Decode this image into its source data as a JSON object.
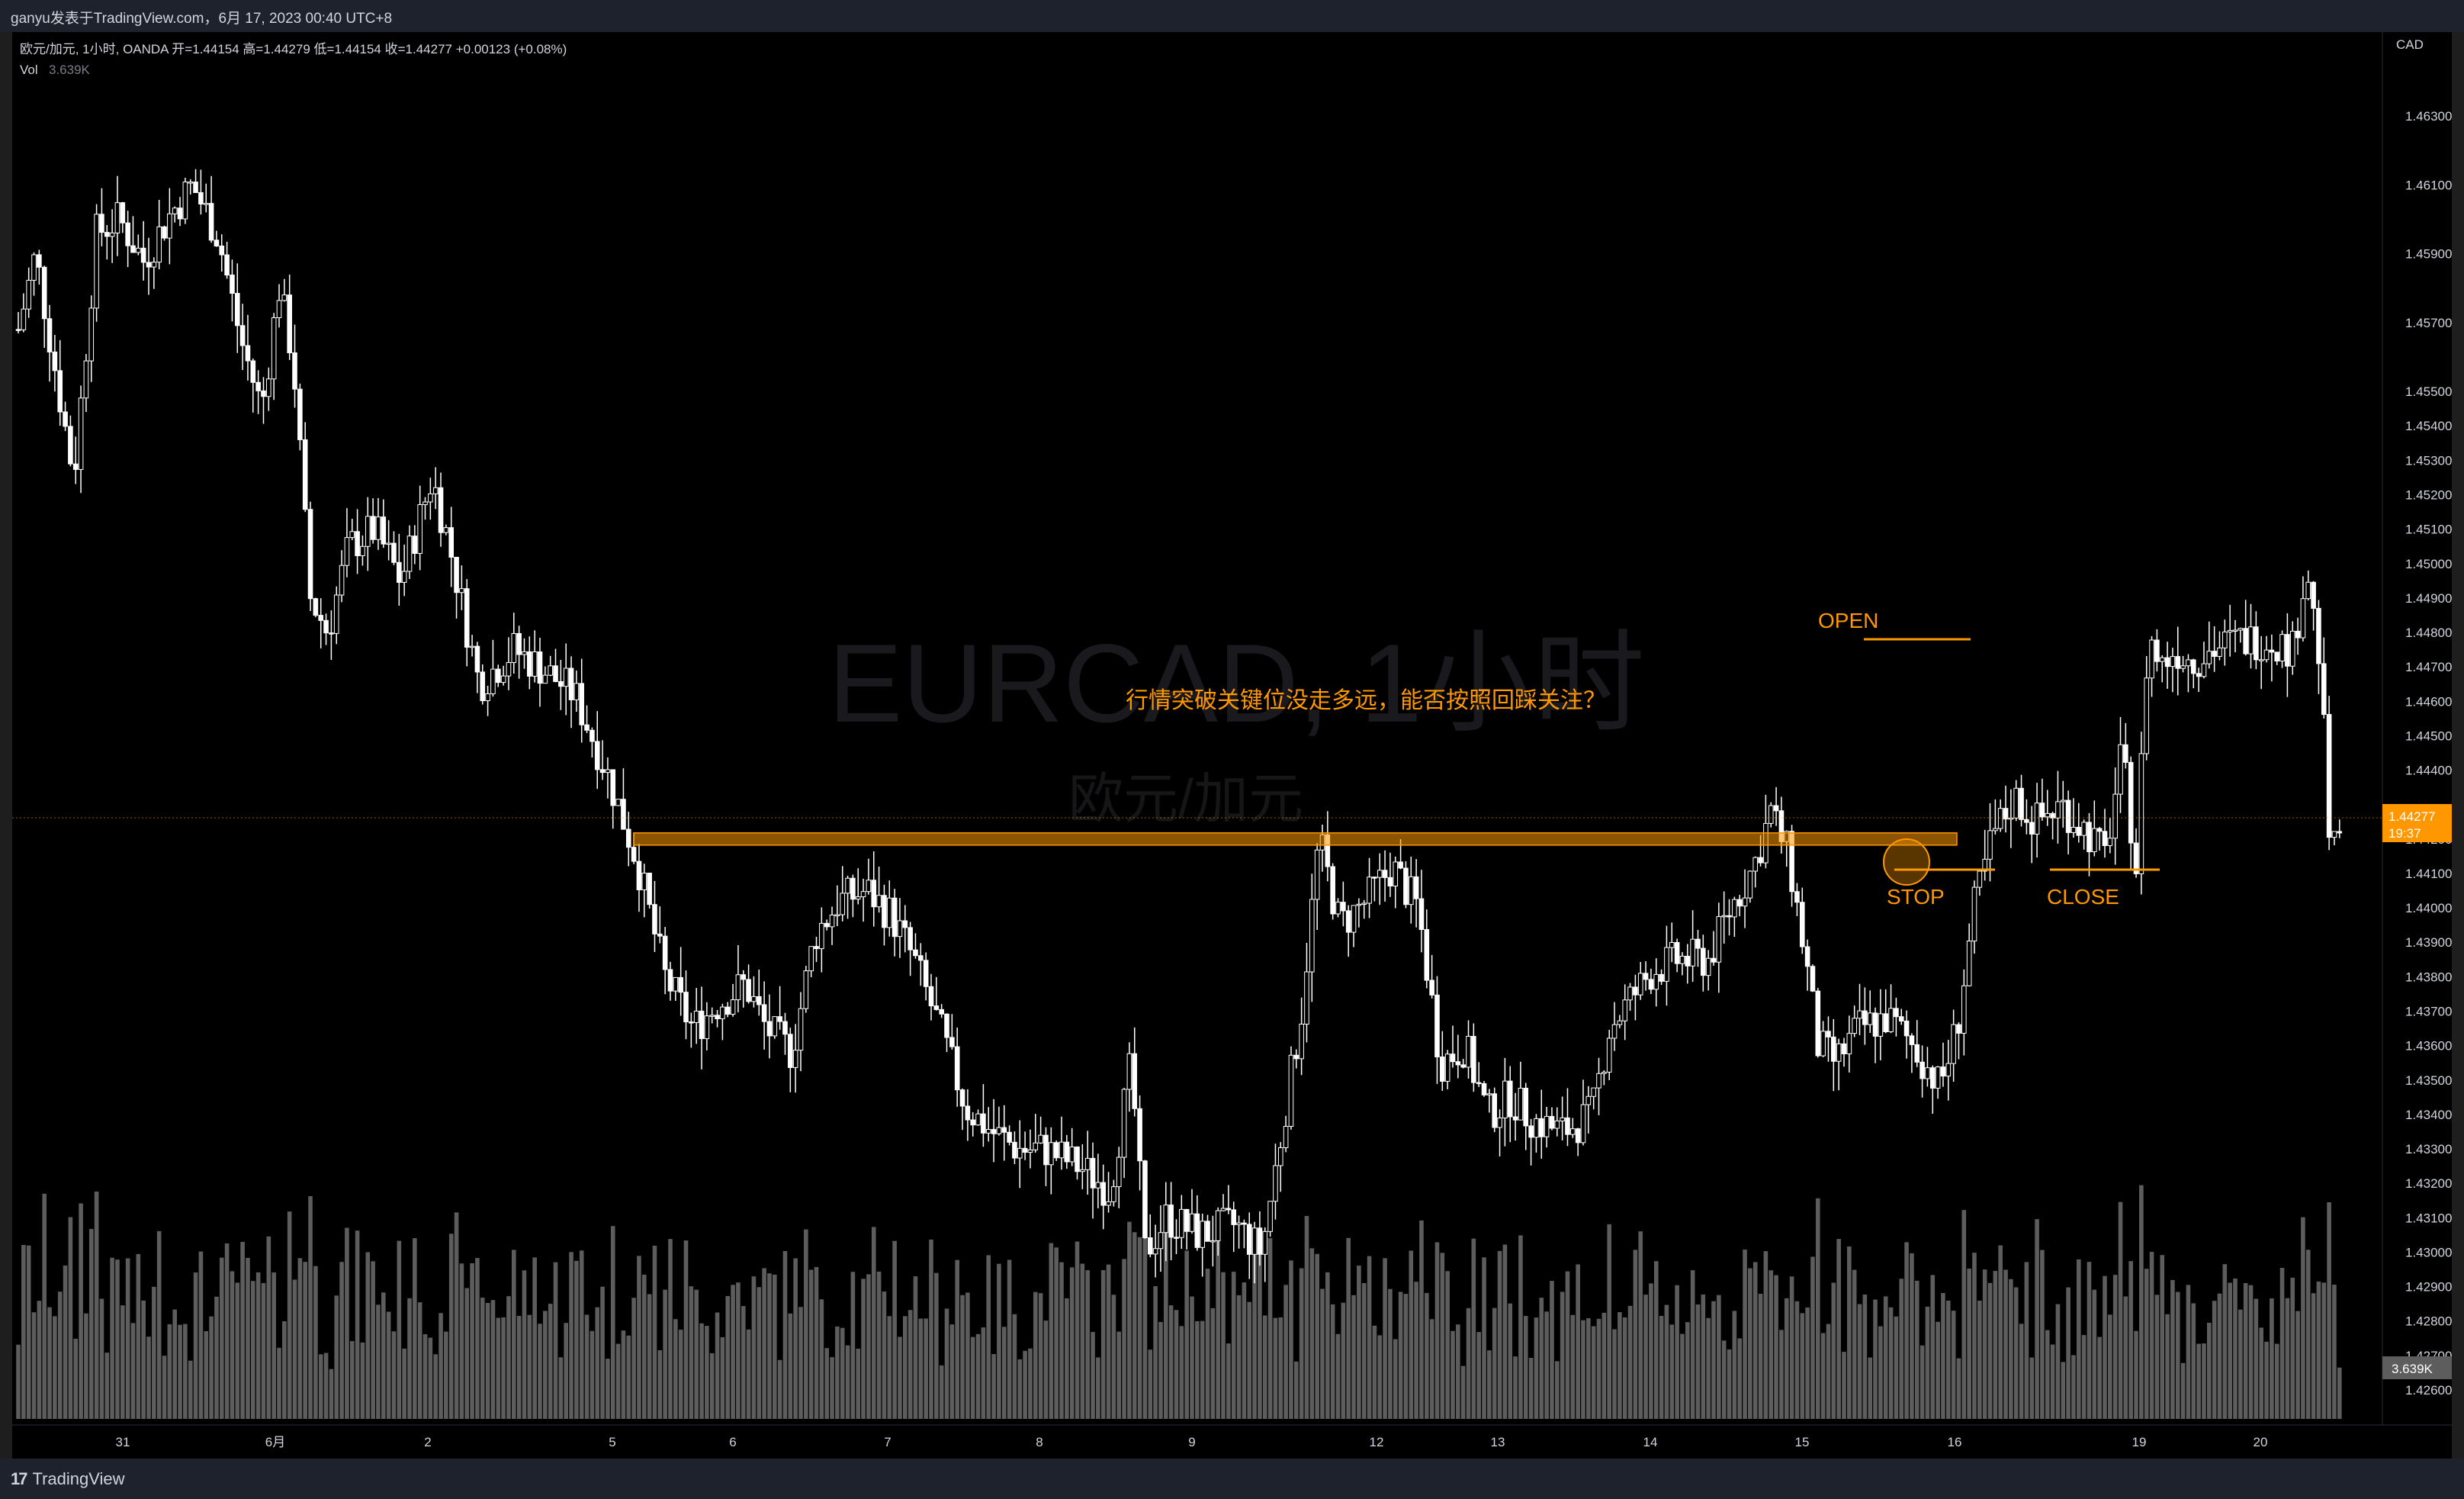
{
  "header": {
    "publish_line": "ganyu发表于TradingView.com，6月 17, 2023 00:40 UTC+8"
  },
  "legend": {
    "symbol_line": "欧元/加元, 1小时, OANDA  开=1.44154  高=1.44279  低=1.44154  收=1.44277  +0.00123 (+0.08%)",
    "vol_label": "Vol",
    "vol_value": "3.639K"
  },
  "watermark": {
    "main": "EURCAD, 1小时",
    "sub": "欧元/加元"
  },
  "annotation": {
    "question": "行情突破关键位没走多远，能否按照回踩关注？",
    "open_label": "OPEN",
    "stop_label": "STOP",
    "close_label": "CLOSE",
    "color": "#ff9800"
  },
  "price_axis": {
    "currency": "CAD",
    "last_price": "1.44277",
    "countdown": "19:37",
    "volume_tag": "3.639K"
  },
  "footer": {
    "brand": "TradingView"
  },
  "colors": {
    "up": "#ffffff",
    "down": "#ffffff",
    "volume": "#5d5d5d",
    "accent": "#ff9800",
    "background": "#000000"
  },
  "chart_data": {
    "type": "candlestick",
    "symbol": "EURCAD",
    "timeframe": "1小时",
    "x_ticks": [
      "31",
      "6月",
      "2",
      "5",
      "6",
      "7",
      "8",
      "9",
      "12",
      "13",
      "14",
      "15",
      "16",
      "19",
      "20"
    ],
    "y_ticks": [
      "1.46300",
      "1.46100",
      "1.45900",
      "1.45700",
      "1.45500",
      "1.45400",
      "1.45300",
      "1.45200",
      "1.45100",
      "1.45000",
      "1.44900",
      "1.44800",
      "1.44700",
      "1.44600",
      "1.44500",
      "1.44400",
      "1.44200",
      "1.44100",
      "1.44000",
      "1.43900",
      "1.43800",
      "1.43700",
      "1.43600",
      "1.43500",
      "1.43400",
      "1.43300",
      "1.43200",
      "1.43100",
      "1.43000",
      "1.42900",
      "1.42800",
      "1.42700",
      "1.42600"
    ],
    "y_range": [
      1.425,
      1.465
    ],
    "price_path": [
      [
        0,
        1.4568
      ],
      [
        10,
        1.459
      ],
      [
        25,
        1.4545
      ],
      [
        32,
        1.4525
      ],
      [
        45,
        1.4596
      ],
      [
        58,
        1.46
      ],
      [
        72,
        1.4588
      ],
      [
        88,
        1.4602
      ],
      [
        100,
        1.461
      ],
      [
        115,
        1.4595
      ],
      [
        128,
        1.4565
      ],
      [
        140,
        1.4545
      ],
      [
        150,
        1.458
      ],
      [
        158,
        1.456
      ],
      [
        168,
        1.449
      ],
      [
        178,
        1.448
      ],
      [
        190,
        1.4505
      ],
      [
        205,
        1.451
      ],
      [
        220,
        1.4495
      ],
      [
        238,
        1.4525
      ],
      [
        248,
        1.4505
      ],
      [
        265,
        1.4465
      ],
      [
        285,
        1.4475
      ],
      [
        300,
        1.447
      ],
      [
        320,
        1.4462
      ],
      [
        338,
        1.444
      ],
      [
        355,
        1.4415
      ],
      [
        372,
        1.438
      ],
      [
        388,
        1.4365
      ],
      [
        402,
        1.4372
      ],
      [
        418,
        1.4378
      ],
      [
        430,
        1.4365
      ],
      [
        445,
        1.4358
      ],
      [
        458,
        1.4392
      ],
      [
        472,
        1.4402
      ],
      [
        488,
        1.4405
      ],
      [
        502,
        1.4398
      ],
      [
        515,
        1.4385
      ],
      [
        530,
        1.4365
      ],
      [
        545,
        1.4342
      ],
      [
        560,
        1.4335
      ],
      [
        575,
        1.433
      ],
      [
        590,
        1.433
      ],
      [
        610,
        1.4325
      ],
      [
        628,
        1.4318
      ],
      [
        640,
        1.4355
      ],
      [
        648,
        1.43
      ],
      [
        660,
        1.431
      ],
      [
        680,
        1.4305
      ],
      [
        700,
        1.4308
      ],
      [
        715,
        1.43
      ],
      [
        725,
        1.433
      ],
      [
        738,
        1.437
      ],
      [
        748,
        1.442
      ],
      [
        760,
        1.4395
      ],
      [
        775,
        1.4402
      ],
      [
        790,
        1.4412
      ],
      [
        805,
        1.44
      ],
      [
        818,
        1.4355
      ],
      [
        832,
        1.436
      ],
      [
        845,
        1.434
      ],
      [
        858,
        1.4345
      ],
      [
        872,
        1.4338
      ],
      [
        888,
        1.4335
      ],
      [
        905,
        1.434
      ],
      [
        915,
        1.4365
      ],
      [
        925,
        1.4372
      ],
      [
        940,
        1.4382
      ],
      [
        955,
        1.4385
      ],
      [
        972,
        1.4385
      ],
      [
        985,
        1.44
      ],
      [
        998,
        1.4412
      ],
      [
        1008,
        1.4428
      ],
      [
        1018,
        1.4415
      ],
      [
        1028,
        1.4385
      ],
      [
        1035,
        1.436
      ],
      [
        1045,
        1.4355
      ],
      [
        1058,
        1.4365
      ],
      [
        1075,
        1.4368
      ],
      [
        1090,
        1.436
      ],
      [
        1105,
        1.4348
      ],
      [
        1115,
        1.4365
      ],
      [
        1125,
        1.44
      ],
      [
        1135,
        1.442
      ],
      [
        1148,
        1.4432
      ],
      [
        1160,
        1.4425
      ],
      [
        1175,
        1.443
      ],
      [
        1190,
        1.4422
      ],
      [
        1200,
        1.4415
      ],
      [
        1210,
        1.4445
      ],
      [
        1218,
        1.4412
      ],
      [
        1225,
        1.448
      ],
      [
        1232,
        1.447
      ],
      [
        1240,
        1.4475
      ],
      [
        1250,
        1.4472
      ],
      [
        1262,
        1.4475
      ],
      [
        1278,
        1.4478
      ],
      [
        1295,
        1.4478
      ],
      [
        1308,
        1.4475
      ],
      [
        1316,
        1.45
      ],
      [
        1324,
        1.447
      ],
      [
        1330,
        1.4412
      ],
      [
        1336,
        1.4425
      ]
    ],
    "key_level": 1.442,
    "open_level": 1.4478,
    "stop_level": 1.4412,
    "close_level": 1.4412
  }
}
